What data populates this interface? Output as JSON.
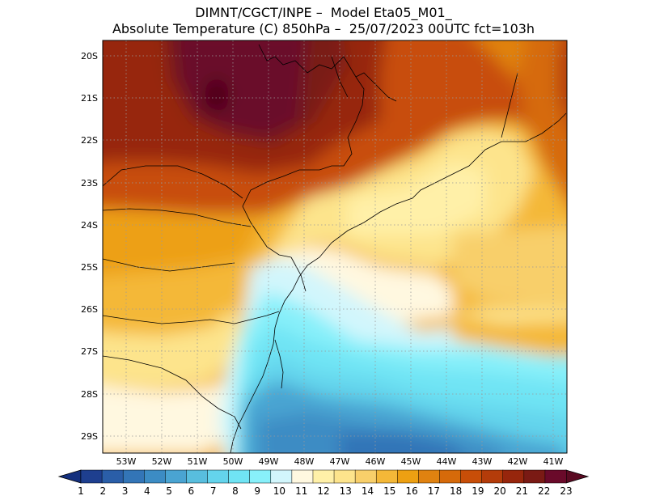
{
  "header": {
    "line1": "DIMNT/CGCT/INPE –  Model Eta05_M01_",
    "line2": "Absolute Temperature (C) 850hPa –  25/07/2023 00UTC fct=103h"
  },
  "map": {
    "lat_labels": [
      "20S",
      "21S",
      "22S",
      "23S",
      "24S",
      "25S",
      "26S",
      "27S",
      "28S",
      "29S"
    ],
    "lon_labels": [
      "53W",
      "52W",
      "51W",
      "50W",
      "49W",
      "48W",
      "47W",
      "46W",
      "45W",
      "44W",
      "43W",
      "42W",
      "41W"
    ],
    "lat_range": [
      -29.4,
      -19.7
    ],
    "lon_range": [
      -53.6,
      -40.6
    ]
  },
  "colorbar": {
    "labels": [
      "1",
      "2",
      "3",
      "4",
      "5",
      "6",
      "7",
      "8",
      "9",
      "10",
      "11",
      "12",
      "13",
      "14",
      "15",
      "16",
      "17",
      "18",
      "19",
      "20",
      "21",
      "22",
      "23"
    ],
    "colors": [
      "#1e3f8f",
      "#2a5ea8",
      "#3375b7",
      "#3c8cc4",
      "#4aa4d2",
      "#58bede",
      "#64d4ec",
      "#70e4f4",
      "#88f0fa",
      "#d2f6fc",
      "#fff8e0",
      "#fff0a8",
      "#fde48c",
      "#f8cf6a",
      "#f4b838",
      "#eda012",
      "#e08210",
      "#d66a0a",
      "#c84e08",
      "#b43c0a",
      "#97260c",
      "#7a1a14",
      "#6a0a2a"
    ],
    "left_tip_color": "#14307e",
    "right_tip_color": "#5a0a22"
  }
}
